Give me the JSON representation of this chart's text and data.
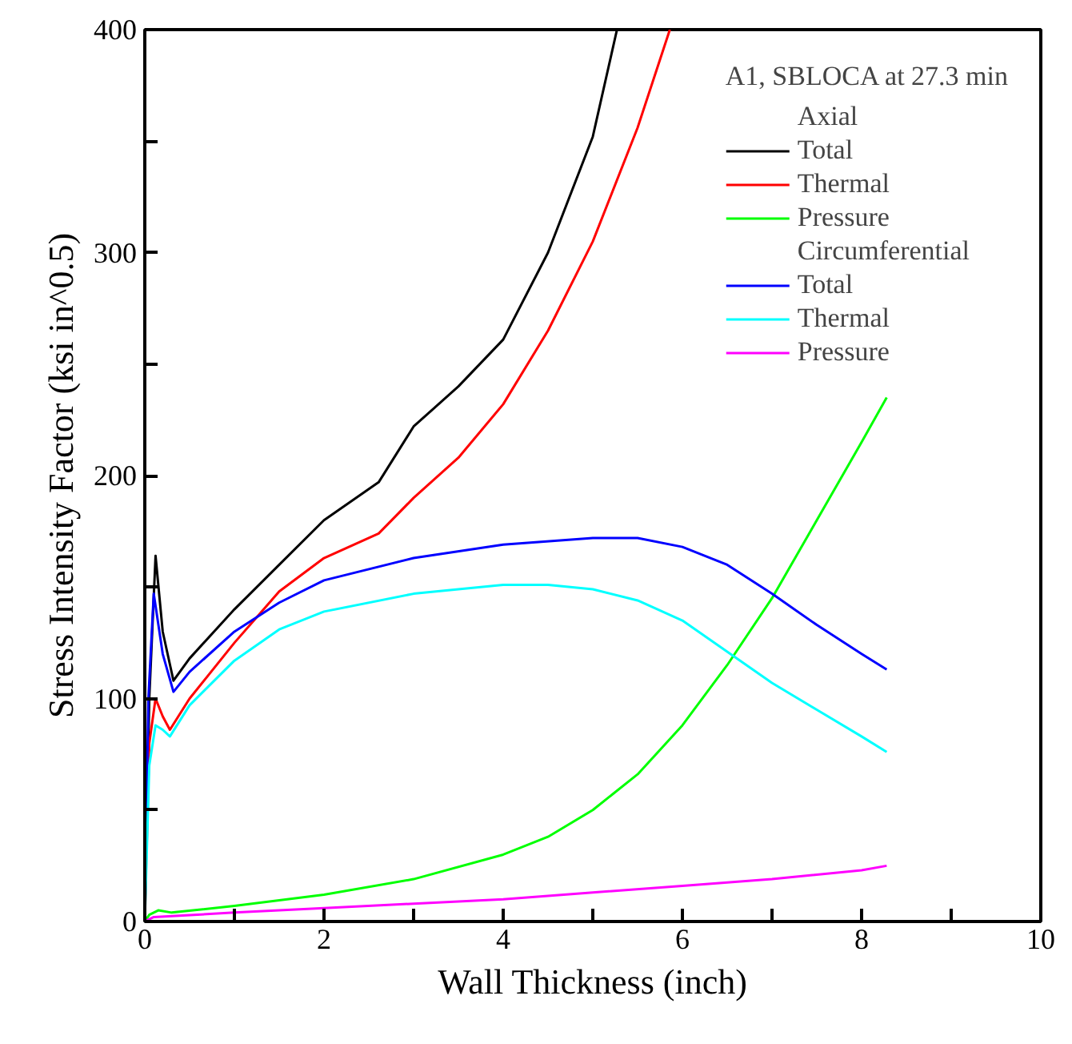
{
  "chart_data": {
    "type": "line",
    "xlabel": "Wall Thickness (inch)",
    "ylabel": "Stress Intensity Factor (ksi in^0.5)",
    "legend_title": "A1, SBLOCA at 27.3 min",
    "annotations": [
      "Axial",
      "Circumferential"
    ],
    "legend": "top right",
    "grid": false,
    "line_style": "solid",
    "xlim": [
      0,
      10
    ],
    "ylim": [
      0,
      400
    ],
    "xticks": [
      0,
      {
        "value": 1,
        "label": null
      },
      2,
      {
        "value": 3,
        "label": null
      },
      4,
      {
        "value": 5,
        "label": null
      },
      6,
      {
        "value": 7,
        "label": null
      },
      8,
      {
        "value": 9,
        "label": null
      },
      10
    ],
    "yticks": [
      0,
      {
        "value": 50,
        "label": null
      },
      100,
      {
        "value": 150,
        "label": null
      },
      200,
      {
        "value": 250,
        "label": null
      },
      300,
      {
        "value": 350,
        "label": null
      },
      400
    ],
    "series": [
      {
        "name": "Total",
        "color": "#000000",
        "x": [
          0,
          0.05,
          0.12,
          0.2,
          0.32,
          0.5,
          1,
          1.5,
          2,
          2.61,
          3,
          3.5,
          4,
          4.5,
          5,
          5.27
        ],
        "values": [
          0,
          100,
          164,
          130,
          108,
          118,
          140,
          160,
          180,
          197,
          222,
          240,
          261,
          300,
          352,
          400
        ]
      },
      {
        "name": "Thermal",
        "color": "#ff0000",
        "x": [
          0,
          0.05,
          0.12,
          0.2,
          0.28,
          0.5,
          1,
          1.5,
          2,
          2.61,
          3,
          3.5,
          4,
          4.5,
          5,
          5.5,
          5.86
        ],
        "values": [
          0,
          80,
          100,
          92,
          86,
          100,
          125,
          148,
          163,
          174,
          190,
          208,
          232,
          265,
          305,
          356,
          400
        ]
      },
      {
        "name": "Pressure",
        "color": "#00ff00",
        "x": [
          0,
          0.05,
          0.15,
          0.3,
          1,
          2,
          3,
          4,
          4.5,
          5,
          5.5,
          6,
          6.5,
          7,
          7.5,
          8,
          8.28
        ],
        "values": [
          0,
          3,
          5,
          4,
          7,
          12,
          19,
          30,
          38,
          50,
          66,
          88,
          115,
          145,
          180,
          215,
          235
        ]
      },
      {
        "name": "Total",
        "color": "#0000ff",
        "x": [
          0,
          0.04,
          0.1,
          0.2,
          0.32,
          0.5,
          1,
          1.5,
          2,
          3,
          4,
          5,
          5.5,
          6,
          6.5,
          7,
          7.5,
          8,
          8.28
        ],
        "values": [
          0,
          100,
          147,
          120,
          103,
          112,
          130,
          143,
          153,
          163,
          169,
          172,
          172,
          168,
          160,
          147,
          133,
          120,
          113
        ]
      },
      {
        "name": "Thermal",
        "color": "#00ffff",
        "x": [
          0,
          0.05,
          0.12,
          0.2,
          0.28,
          0.5,
          1,
          1.5,
          2,
          3,
          4,
          4.5,
          5,
          5.5,
          6,
          6.5,
          7,
          7.5,
          8,
          8.28
        ],
        "values": [
          0,
          70,
          88,
          86,
          83,
          97,
          117,
          131,
          139,
          147,
          151,
          151,
          149,
          144,
          135,
          121,
          107,
          95,
          83,
          76
        ]
      },
      {
        "name": "Pressure",
        "color": "#ff00ff",
        "x": [
          0,
          0.1,
          1,
          2,
          3,
          4,
          5,
          6,
          7,
          8,
          8.28
        ],
        "values": [
          0,
          2,
          4,
          6,
          8,
          10,
          13,
          16,
          19,
          23,
          25
        ]
      }
    ]
  }
}
